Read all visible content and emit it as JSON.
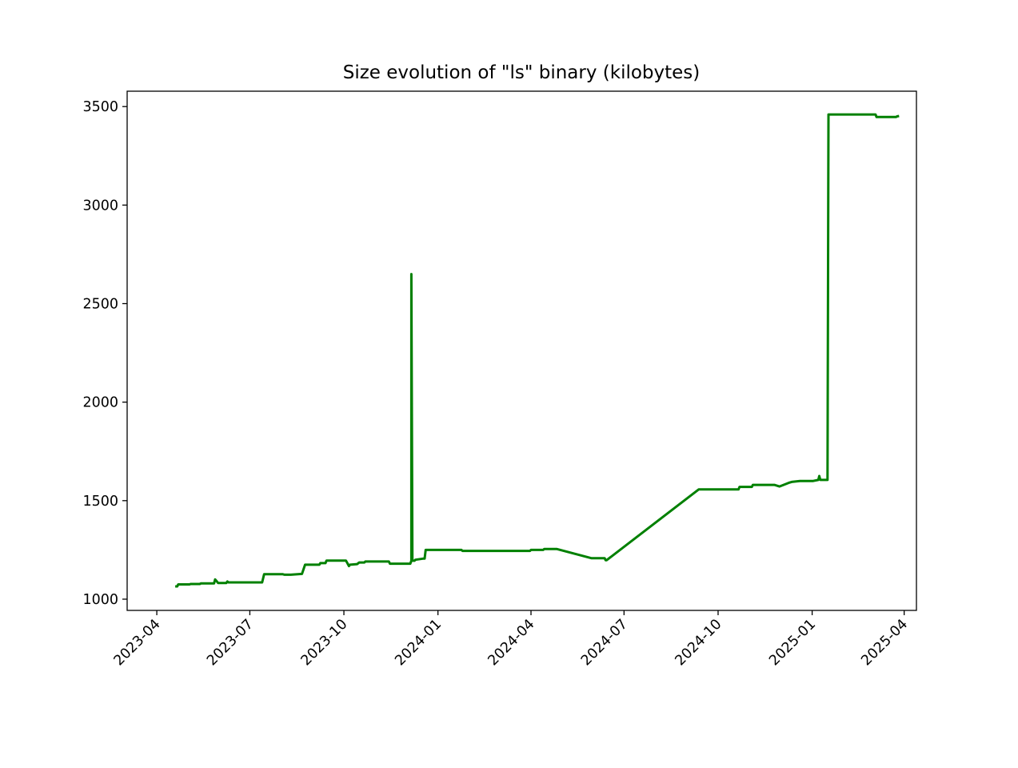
{
  "chart_data": {
    "type": "line",
    "title": "Size evolution of \"ls\" binary (kilobytes)",
    "xlabel": "",
    "ylabel": "",
    "x_axis": {
      "kind": "date",
      "range": [
        "2023-03-03",
        "2025-04-13"
      ],
      "ticks": [
        "2023-04",
        "2023-07",
        "2023-10",
        "2024-01",
        "2024-04",
        "2024-07",
        "2024-10",
        "2025-01",
        "2025-04"
      ],
      "tick_values": [
        "2023-04-01",
        "2023-07-01",
        "2023-10-01",
        "2024-01-01",
        "2024-04-01",
        "2024-07-01",
        "2024-10-01",
        "2025-01-01",
        "2025-04-01"
      ]
    },
    "y_axis": {
      "range": [
        943,
        3578
      ],
      "ticks": [
        "1000",
        "1500",
        "2000",
        "2500",
        "3000",
        "3500"
      ],
      "tick_values": [
        1000,
        1500,
        2000,
        2500,
        3000,
        3500
      ]
    },
    "grid": false,
    "legend": "none",
    "series": [
      {
        "color": "#008000",
        "x": [
          "2023-04-19",
          "2023-04-21",
          "2023-04-22",
          "2023-05-03",
          "2023-05-04",
          "2023-05-13",
          "2023-05-14",
          "2023-05-27",
          "2023-05-28",
          "2023-05-29",
          "2023-05-31",
          "2023-06-01",
          "2023-06-08",
          "2023-06-09",
          "2023-06-10",
          "2023-06-11",
          "2023-06-12",
          "2023-07-13",
          "2023-07-15",
          "2023-08-02",
          "2023-08-04",
          "2023-08-10",
          "2023-08-21",
          "2023-08-24",
          "2023-09-07",
          "2023-09-08",
          "2023-09-13",
          "2023-09-14",
          "2023-10-03",
          "2023-10-06",
          "2023-10-07",
          "2023-10-14",
          "2023-10-16",
          "2023-10-21",
          "2023-10-22",
          "2023-11-14",
          "2023-11-15",
          "2023-12-05",
          "2023-12-06",
          "2023-12-06",
          "2023-12-07",
          "2023-12-09",
          "2023-12-10",
          "2023-12-18",
          "2023-12-19",
          "2023-12-20",
          "2024-01-24",
          "2024-01-25",
          "2024-03-31",
          "2024-04-01",
          "2024-04-13",
          "2024-04-14",
          "2024-04-23",
          "2024-04-26",
          "2024-05-30",
          "2024-06-12",
          "2024-06-13",
          "2024-06-14",
          "2024-09-12",
          "2024-10-21",
          "2024-10-22",
          "2024-11-03",
          "2024-11-04",
          "2024-11-25",
          "2024-11-30",
          "2024-12-09",
          "2024-12-12",
          "2024-12-20",
          "2024-12-21",
          "2025-01-02",
          "2025-01-07",
          "2025-01-08",
          "2025-01-09",
          "2025-01-09",
          "2025-01-12",
          "2025-01-16",
          "2025-01-17",
          "2025-03-04",
          "2025-03-05",
          "2025-03-24",
          "2025-03-25",
          "2025-03-27"
        ],
        "y": [
          1065,
          1065,
          1075,
          1075,
          1077,
          1077,
          1080,
          1080,
          1100,
          1095,
          1082,
          1082,
          1082,
          1090,
          1085,
          1085,
          1085,
          1085,
          1127,
          1127,
          1124,
          1124,
          1128,
          1175,
          1175,
          1183,
          1183,
          1196,
          1196,
          1168,
          1175,
          1178,
          1186,
          1186,
          1191,
          1191,
          1180,
          1180,
          1195,
          2650,
          1195,
          1195,
          1200,
          1206,
          1206,
          1250,
          1250,
          1245,
          1245,
          1250,
          1250,
          1255,
          1255,
          1255,
          1208,
          1208,
          1198,
          1198,
          1557,
          1557,
          1570,
          1570,
          1580,
          1580,
          1572,
          1590,
          1595,
          1600,
          1600,
          1600,
          1605,
          1625,
          1605,
          1605,
          1605,
          1605,
          3460,
          3460,
          3447,
          3447,
          3450,
          3452
        ]
      }
    ]
  }
}
